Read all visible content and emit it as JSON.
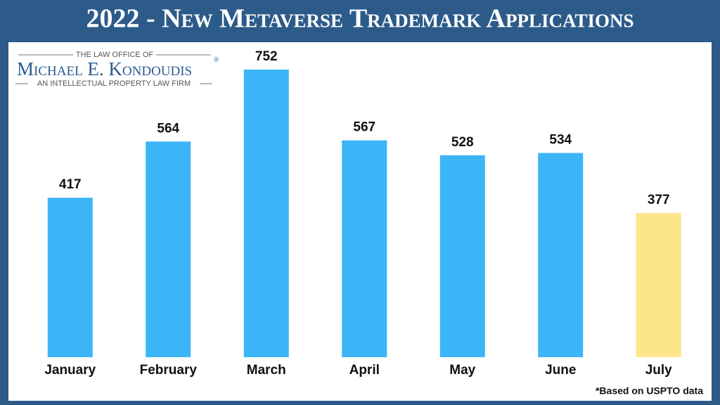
{
  "chart_data": {
    "type": "bar",
    "title": "2022 - New Metaverse Trademark Applications",
    "categories": [
      "January",
      "February",
      "March",
      "April",
      "May",
      "June",
      "July"
    ],
    "values": [
      417,
      564,
      752,
      567,
      528,
      534,
      377
    ],
    "colors": [
      "#3bb5f7",
      "#3bb5f7",
      "#3bb5f7",
      "#3bb5f7",
      "#3bb5f7",
      "#3bb5f7",
      "#fde58a"
    ],
    "footnote": "*Based on USPTO data"
  },
  "logo": {
    "top": "THE LAW OFFICE OF",
    "name": "Michael E. Kondoudis",
    "mark": "®",
    "bottom": "AN INTELLECTUAL PROPERTY LAW FIRM"
  }
}
